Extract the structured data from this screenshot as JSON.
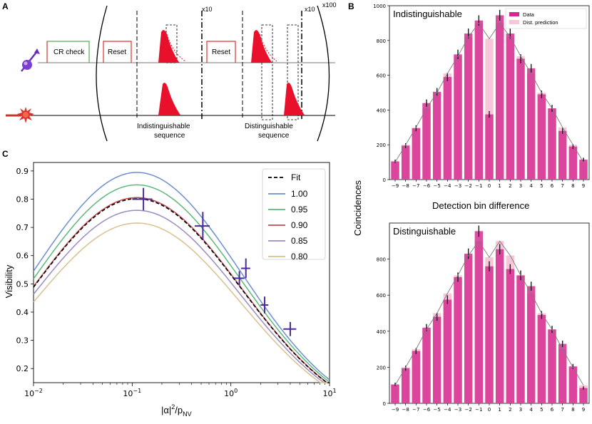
{
  "panels": {
    "a": "A",
    "b": "B",
    "c": "C"
  },
  "diagram": {
    "cr_check": "CR check",
    "reset1": "Reset",
    "reset2": "Reset",
    "repeat_inner1": "x10",
    "repeat_inner2": "x10",
    "repeat_outer": "x100",
    "indist_seq": [
      "Indistinguishable",
      "sequence"
    ],
    "dist_seq": [
      "Distinguishable",
      "sequence"
    ],
    "icons": [
      "spin-arrow-icon",
      "star-burst-icon"
    ],
    "colors": {
      "green": "#4caf50",
      "red": "#e03030",
      "pulse": "#e8102a",
      "purple": "#6b2bbf"
    }
  },
  "chart_data": [
    {
      "id": "indistinguishable",
      "type": "bar",
      "title": "Indistinguishable",
      "xlabel": "Detection bin difference",
      "ylabel": "Coincidences",
      "categories": [
        "-9",
        "-8",
        "-7",
        "-6",
        "-5",
        "-4",
        "-3",
        "-2",
        "-1",
        "0",
        "1",
        "2",
        "3",
        "4",
        "5",
        "6",
        "7",
        "8",
        "9"
      ],
      "tick_labels": [
        "−9",
        "−8",
        "−7",
        "−6",
        "−5",
        "−4",
        "−3",
        "−2",
        "−1",
        "0",
        "1",
        "2",
        "3",
        "4",
        "5",
        "6",
        "7",
        "8",
        "9"
      ],
      "ylim": [
        0,
        1000
      ],
      "yticks": [
        0,
        200,
        400,
        600,
        800,
        1000
      ],
      "series": [
        {
          "name": "Data",
          "color": "#d42a8f",
          "values": [
            105,
            195,
            295,
            440,
            505,
            590,
            720,
            840,
            915,
            375,
            945,
            840,
            695,
            640,
            490,
            410,
            280,
            190,
            115
          ],
          "errors": [
            10,
            14,
            17,
            21,
            22,
            24,
            27,
            29,
            30,
            19,
            31,
            29,
            26,
            25,
            22,
            20,
            17,
            14,
            11
          ]
        },
        {
          "name": "Dist. prediction",
          "color": "#f7c6d9",
          "values": [
            100,
            200,
            300,
            410,
            500,
            610,
            710,
            820,
            900,
            810,
            900,
            820,
            710,
            610,
            500,
            410,
            300,
            200,
            100
          ]
        }
      ],
      "legend": "top-right"
    },
    {
      "id": "distinguishable",
      "type": "bar",
      "title": "Distinguishable",
      "categories": [
        "-9",
        "-8",
        "-7",
        "-6",
        "-5",
        "-4",
        "-3",
        "-2",
        "-1",
        "0",
        "1",
        "2",
        "3",
        "4",
        "5",
        "6",
        "7",
        "8",
        "9"
      ],
      "tick_labels": [
        "−9",
        "−8",
        "−7",
        "−6",
        "−5",
        "−4",
        "−3",
        "−2",
        "−1",
        "0",
        "1",
        "2",
        "3",
        "4",
        "5",
        "6",
        "7",
        "8",
        "9"
      ],
      "ylim": [
        0,
        1000
      ],
      "yticks": [
        0,
        200,
        400,
        600,
        800
      ],
      "series": [
        {
          "name": "Data",
          "color": "#d42a8f",
          "values": [
            105,
            195,
            290,
            420,
            480,
            575,
            700,
            830,
            955,
            760,
            855,
            745,
            710,
            650,
            490,
            410,
            330,
            205,
            85
          ],
          "errors": [
            10,
            14,
            17,
            20,
            22,
            24,
            26,
            29,
            31,
            28,
            29,
            27,
            27,
            25,
            22,
            20,
            18,
            14,
            9
          ]
        },
        {
          "name": "Dist. prediction",
          "color": "#f7c6d9",
          "values": [
            100,
            200,
            300,
            410,
            500,
            610,
            710,
            820,
            900,
            810,
            900,
            820,
            710,
            610,
            500,
            410,
            300,
            200,
            100
          ]
        }
      ]
    },
    {
      "id": "visibility",
      "type": "line",
      "xlabel": "|α|²/p_NV",
      "xlabel_parts": [
        "|α|",
        "2",
        "/p",
        "NV"
      ],
      "ylabel": "Visibility",
      "xscale": "log",
      "xlim": [
        0.01,
        10
      ],
      "ylim": [
        0.15,
        0.93
      ],
      "xticks": [
        0.01,
        0.1,
        1,
        10
      ],
      "xtick_labels": [
        [
          "10",
          "−2"
        ],
        [
          "10",
          "−1"
        ],
        [
          "10",
          "0"
        ],
        [
          "10",
          "1"
        ]
      ],
      "yticks": [
        0.2,
        0.3,
        0.4,
        0.5,
        0.6,
        0.7,
        0.8,
        0.9
      ],
      "ytick_labels": [
        "0.2",
        "0.3",
        "0.4",
        "0.5",
        "0.6",
        "0.7",
        "0.8",
        "0.9"
      ],
      "fit_label": "Fit",
      "series": [
        {
          "name": "1.00",
          "color": "#6b8fd0",
          "amp": 0.893
        },
        {
          "name": "0.95",
          "color": "#5db879",
          "amp": 0.849
        },
        {
          "name": "0.90",
          "color": "#c44a50",
          "amp": 0.804
        },
        {
          "name": "0.85",
          "color": "#9b8ac4",
          "amp": 0.759
        },
        {
          "name": "0.80",
          "color": "#d9c08f",
          "amp": 0.714
        }
      ],
      "fit_amp": 0.8,
      "points": [
        {
          "x": 0.13,
          "y": 0.8,
          "xerr": 0.03,
          "yerr": 0.04
        },
        {
          "x": 0.52,
          "y": 0.705,
          "xerr": 0.09,
          "yerr": 0.05
        },
        {
          "x": 1.22,
          "y": 0.52,
          "xerr": 0.15,
          "yerr": 0.025
        },
        {
          "x": 1.42,
          "y": 0.555,
          "xerr": 0.15,
          "yerr": 0.035
        },
        {
          "x": 2.2,
          "y": 0.425,
          "xerr": 0.2,
          "yerr": 0.03
        },
        {
          "x": 4.0,
          "y": 0.34,
          "xerr": 0.6,
          "yerr": 0.025
        }
      ],
      "legend": "top-right"
    }
  ]
}
